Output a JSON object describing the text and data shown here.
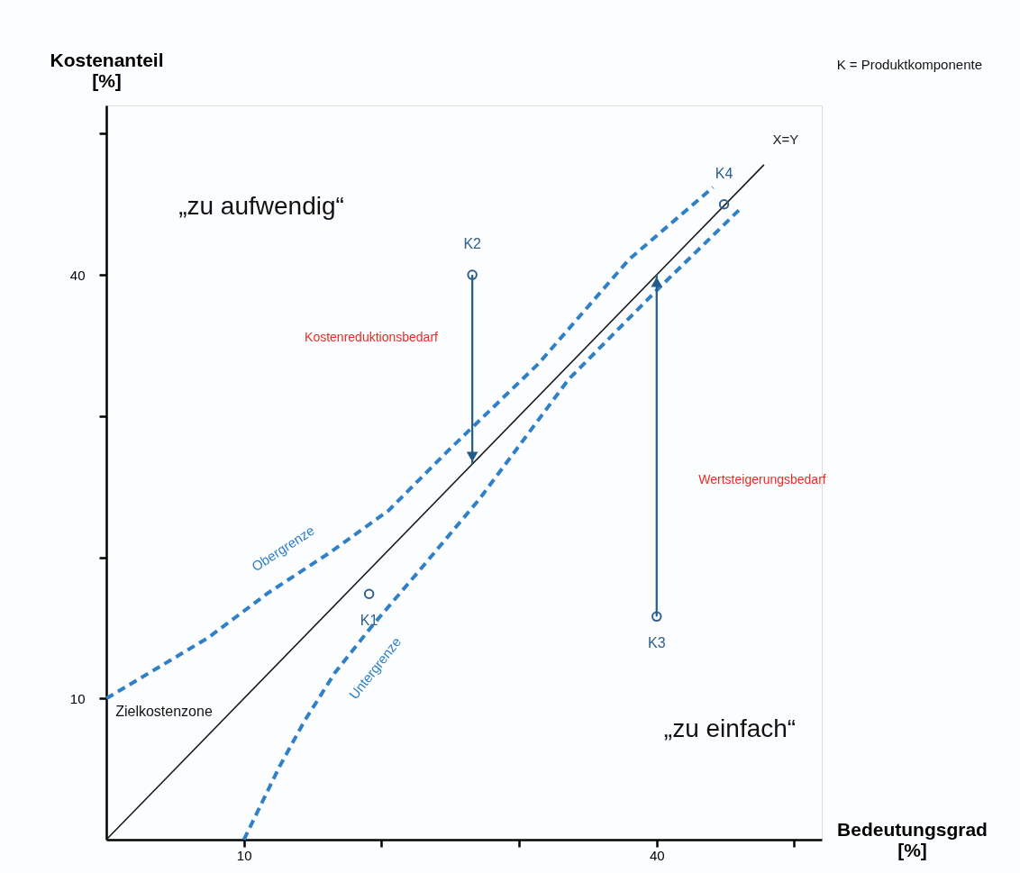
{
  "chart_data": {
    "type": "line",
    "xlabel": "Bedeutungsgrad [%]",
    "ylabel": "Kostenanteil [%]",
    "xlim": [
      0,
      52
    ],
    "ylim": [
      0,
      52
    ],
    "xticks": [
      10,
      {
        "value": 20,
        "label": null
      },
      {
        "value": 30,
        "label": null
      },
      40,
      {
        "value": 50,
        "label": null
      }
    ],
    "yticks": [
      10,
      {
        "value": 20,
        "label": null
      },
      {
        "value": 30,
        "label": null
      },
      40,
      {
        "value": 50,
        "label": null
      }
    ],
    "grid": false,
    "legend": false,
    "series": [
      {
        "name": "X=Y",
        "type": "line",
        "line_style": "solid",
        "color": "#1a1a1a",
        "x": [
          0,
          47.8
        ],
        "values": [
          0,
          47.8
        ]
      },
      {
        "name": "Obergrenze",
        "type": "line",
        "line_style": "dashed",
        "color": "#2f80c7",
        "x": [
          0,
          3.1,
          7.4,
          11.8,
          16.2,
          20.5,
          24.9,
          31.4,
          38,
          44.1
        ],
        "values": [
          10,
          11.8,
          14.3,
          17.5,
          20.3,
          23.3,
          27.6,
          33.7,
          41.1,
          46.2
        ]
      },
      {
        "name": "Untergrenze",
        "type": "line",
        "line_style": "dashed",
        "color": "#2f80c7",
        "x": [
          10,
          12.6,
          14.4,
          16.6,
          19.2,
          22.7,
          27.1,
          33.6,
          40.1,
          46
        ],
        "values": [
          0,
          5.2,
          8.4,
          11.8,
          15,
          19,
          24.1,
          32.6,
          39,
          44.6
        ]
      },
      {
        "type": "line",
        "line_style": "solid",
        "color": "#235b8a",
        "x": [
          26.6,
          26.6
        ],
        "values": [
          40,
          26.6
        ]
      },
      {
        "type": "line",
        "line_style": "solid",
        "color": "#235b8a",
        "x": [
          40,
          40
        ],
        "values": [
          15.8,
          40
        ]
      },
      {
        "type": "scatter",
        "marker": "circle",
        "color": "#2f5f8a",
        "x": [
          19.1,
          26.6,
          40,
          44.9
        ],
        "values": [
          17.4,
          40,
          15.8,
          45
        ],
        "value_labels": [
          "K1",
          "K2",
          "K3",
          "K4"
        ]
      }
    ],
    "annotations": [
      "„zu aufwendig“",
      "„zu einfach“",
      "Kostenreduktionsbedarf",
      "Wertsteigerungsbedarf",
      "Zielkostenzone",
      "K = Produktkomponente"
    ]
  }
}
